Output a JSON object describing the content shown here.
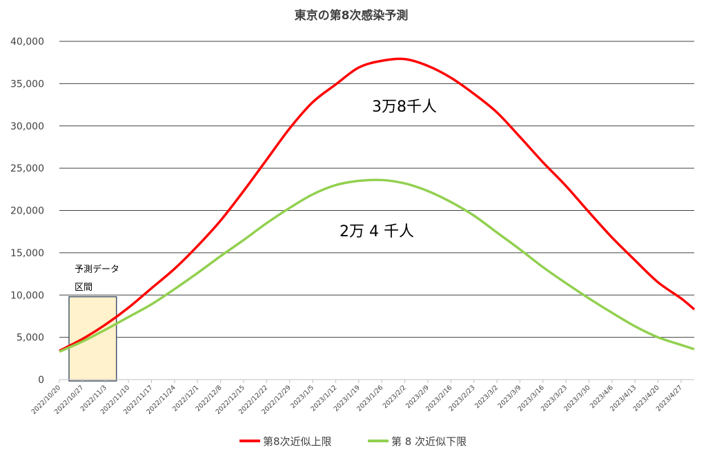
{
  "chart_data": {
    "type": "line",
    "title": "東京の第8次感染予測",
    "xlabel": "",
    "ylabel": "",
    "ylim": [
      0,
      40000
    ],
    "yticks": [
      0,
      5000,
      10000,
      15000,
      20000,
      25000,
      30000,
      35000,
      40000
    ],
    "ytick_labels": [
      "0",
      "5,000",
      "10,000",
      "15,000",
      "20,000",
      "25,000",
      "30,000",
      "35,000",
      "40,000"
    ],
    "x_start": "2022/10/20",
    "x_end": "2023/5/1",
    "x_tick_labels": [
      "2022/10/20",
      "2022/10/27",
      "2022/11/3",
      "2022/11/10",
      "2022/11/17",
      "2022/11/24",
      "2022/12/1",
      "2022/12/8",
      "2022/12/15",
      "2022/12/22",
      "2022/12/29",
      "2023/1/5",
      "2023/1/12",
      "2023/1/19",
      "2023/1/26",
      "2023/2/2",
      "2023/2/9",
      "2023/2/16",
      "2023/2/23",
      "2023/3/2",
      "2023/3/9",
      "2023/3/16",
      "2023/3/23",
      "2023/3/30",
      "2023/4/6",
      "2023/4/13",
      "2023/4/20",
      "2023/4/27"
    ],
    "grid": true,
    "legend_position": "bottom",
    "series": [
      {
        "name": "第8次近似上限",
        "color": "#ff0000",
        "x": [
          "2022/10/20",
          "2022/10/27",
          "2022/11/3",
          "2022/11/10",
          "2022/11/17",
          "2022/11/24",
          "2022/12/1",
          "2022/12/8",
          "2022/12/15",
          "2022/12/22",
          "2022/12/29",
          "2023/1/5",
          "2023/1/12",
          "2023/1/19",
          "2023/1/26",
          "2023/2/2",
          "2023/2/9",
          "2023/2/16",
          "2023/2/23",
          "2023/3/2",
          "2023/3/9",
          "2023/3/16",
          "2023/3/23",
          "2023/3/30",
          "2023/4/6",
          "2023/4/13",
          "2023/4/20",
          "2023/4/27",
          "2023/5/1"
        ],
        "y": [
          3400,
          4800,
          6500,
          8500,
          10800,
          13100,
          15800,
          18800,
          22300,
          26000,
          29700,
          32800,
          34900,
          36900,
          37700,
          37900,
          37100,
          35700,
          33800,
          31600,
          28700,
          25700,
          22900,
          19800,
          16800,
          14100,
          11500,
          9600,
          8300
        ]
      },
      {
        "name": "第 8 次近似下限",
        "color": "#92d050",
        "x": [
          "2022/10/20",
          "2022/10/27",
          "2022/11/3",
          "2022/11/10",
          "2022/11/17",
          "2022/11/24",
          "2022/12/1",
          "2022/12/8",
          "2022/12/15",
          "2022/12/22",
          "2022/12/29",
          "2023/1/5",
          "2023/1/12",
          "2023/1/19",
          "2023/1/26",
          "2023/2/2",
          "2023/2/9",
          "2023/2/16",
          "2023/2/23",
          "2023/3/2",
          "2023/3/9",
          "2023/3/16",
          "2023/3/23",
          "2023/3/30",
          "2023/4/6",
          "2023/4/13",
          "2023/4/20",
          "2023/4/27",
          "2023/5/1"
        ],
        "y": [
          3300,
          4500,
          5900,
          7400,
          8900,
          10700,
          12600,
          14600,
          16500,
          18500,
          20300,
          21900,
          23000,
          23500,
          23600,
          23200,
          22300,
          21000,
          19400,
          17400,
          15400,
          13300,
          11400,
          9600,
          7900,
          6300,
          5000,
          4100,
          3600
        ]
      }
    ],
    "annotations": [
      {
        "text": "3万8千人"
      },
      {
        "text": "2万 4 千人"
      },
      {
        "text": "予測データ"
      },
      {
        "text": "区間"
      }
    ]
  }
}
